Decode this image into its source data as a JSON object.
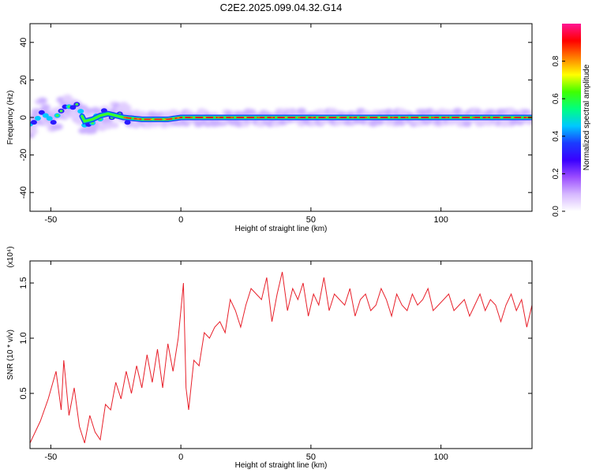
{
  "title": "C2E2.2025.099.04.32.G14",
  "colorbar": {
    "label": "Normalized spectral amplitude",
    "ticks": [
      "0.0",
      "0.2",
      "0.4",
      "0.6",
      "0.8"
    ],
    "tick_values": [
      0.0,
      0.2,
      0.4,
      0.6,
      0.8
    ],
    "range": [
      0,
      1
    ],
    "colors": [
      "#ffffff",
      "#d6b8ff",
      "#9b4dff",
      "#3a00ff",
      "#1a3cff",
      "#00c8ff",
      "#00ff80",
      "#40ff00",
      "#ffff00",
      "#ff8000",
      "#ff0000",
      "#ff1493"
    ]
  },
  "chart_data": [
    {
      "type": "heatmap",
      "xlabel": "Height of straight line (km)",
      "ylabel": "Frequency (Hz)",
      "xlim": [
        -58,
        135
      ],
      "ylim": [
        -50,
        50
      ],
      "xticks": [
        -50,
        0,
        50,
        100
      ],
      "yticks": [
        40,
        20,
        0,
        -20,
        -40
      ],
      "ridge": [
        {
          "x": -58,
          "y": -4
        },
        {
          "x": -55,
          "y": 2
        },
        {
          "x": -52,
          "y": 3
        },
        {
          "x": -49,
          "y": -1
        },
        {
          "x": -46,
          "y": 3
        },
        {
          "x": -43,
          "y": 5
        },
        {
          "x": -40,
          "y": 6
        },
        {
          "x": -37,
          "y": -2
        },
        {
          "x": -34,
          "y": -1
        },
        {
          "x": -31,
          "y": 1
        },
        {
          "x": -28,
          "y": 2
        },
        {
          "x": -25,
          "y": 1
        },
        {
          "x": -22,
          "y": 0
        },
        {
          "x": -15,
          "y": -1
        },
        {
          "x": -5,
          "y": -1
        },
        {
          "x": 0,
          "y": 0
        },
        {
          "x": 135,
          "y": 0
        }
      ]
    },
    {
      "type": "line",
      "xlabel": "Height of straight line (km)",
      "ylabel": "SNR (10 * v/v)",
      "yscale_label": "(x10⁴)",
      "xlim": [
        -58,
        135
      ],
      "ylim": [
        0,
        1.7
      ],
      "xticks": [
        -50,
        0,
        50,
        100
      ],
      "yticks": [
        0.5,
        1.0,
        1.5
      ],
      "ytick_labels": [
        "0.5",
        "1.0",
        "1.5"
      ],
      "series": [
        {
          "color": "#e8202a",
          "x": [
            -58,
            -54,
            -51,
            -48,
            -46,
            -45,
            -43,
            -41,
            -39,
            -37,
            -35,
            -33,
            -31,
            -29,
            -27,
            -25,
            -23,
            -21,
            -19,
            -17,
            -15,
            -13,
            -11,
            -9,
            -7,
            -5,
            -3,
            -1,
            1,
            2,
            3,
            5,
            7,
            9,
            11,
            13,
            15,
            17,
            19,
            21,
            23,
            25,
            27,
            29,
            31,
            33,
            35,
            37,
            39,
            41,
            43,
            45,
            47,
            49,
            51,
            53,
            55,
            57,
            59,
            61,
            63,
            65,
            67,
            69,
            71,
            73,
            75,
            77,
            79,
            81,
            83,
            85,
            87,
            89,
            91,
            93,
            95,
            97,
            99,
            101,
            103,
            105,
            107,
            109,
            111,
            113,
            115,
            117,
            119,
            121,
            123,
            125,
            127,
            129,
            131,
            133,
            135
          ],
          "values": [
            0.05,
            0.25,
            0.45,
            0.7,
            0.35,
            0.8,
            0.3,
            0.55,
            0.2,
            0.05,
            0.3,
            0.15,
            0.08,
            0.4,
            0.35,
            0.6,
            0.45,
            0.7,
            0.5,
            0.75,
            0.55,
            0.85,
            0.6,
            0.9,
            0.55,
            0.95,
            0.7,
            1.0,
            1.5,
            0.55,
            0.35,
            0.8,
            0.75,
            1.05,
            1.0,
            1.1,
            1.15,
            1.05,
            1.35,
            1.25,
            1.1,
            1.3,
            1.45,
            1.4,
            1.35,
            1.55,
            1.15,
            1.4,
            1.6,
            1.25,
            1.45,
            1.35,
            1.5,
            1.2,
            1.4,
            1.3,
            1.55,
            1.25,
            1.4,
            1.35,
            1.3,
            1.45,
            1.2,
            1.35,
            1.4,
            1.25,
            1.3,
            1.45,
            1.35,
            1.2,
            1.4,
            1.3,
            1.25,
            1.4,
            1.3,
            1.35,
            1.45,
            1.25,
            1.3,
            1.35,
            1.4,
            1.25,
            1.3,
            1.35,
            1.2,
            1.3,
            1.4,
            1.25,
            1.35,
            1.3,
            1.15,
            1.3,
            1.4,
            1.25,
            1.35,
            1.1,
            1.3
          ]
        }
      ]
    }
  ]
}
